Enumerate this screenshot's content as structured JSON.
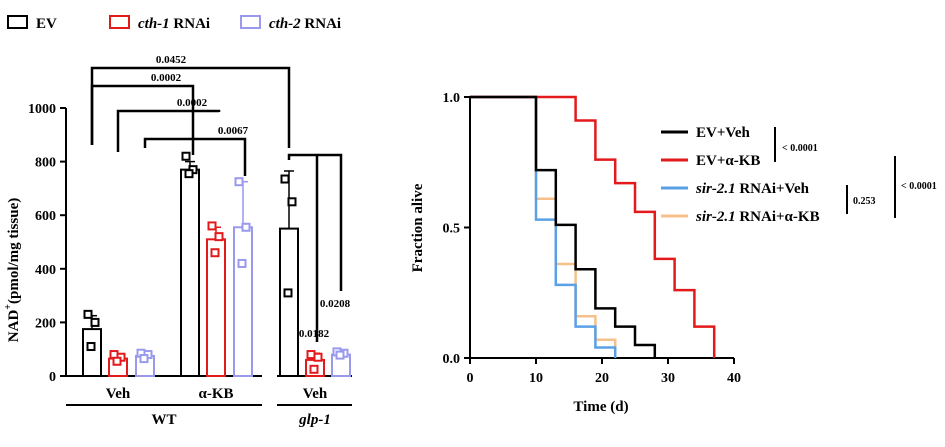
{
  "chart_data": [
    {
      "type": "bar",
      "legend": {
        "placement": "top-left",
        "entries": [
          {
            "plain": "EV",
            "ital": "",
            "rest": "",
            "color": "#000000"
          },
          {
            "plain": "",
            "ital": "cth-1",
            "rest": " RNAi",
            "color": "#e31a1c"
          },
          {
            "plain": "",
            "ital": "cth-2",
            "rest": " RNAi",
            "color": "#9999ee"
          }
        ]
      },
      "ylabel": {
        "main": "NAD",
        "sup": "+",
        "rest": "(pmol/mg tissue)"
      },
      "ylim": [
        0,
        1000
      ],
      "yticks": [
        0,
        200,
        400,
        600,
        800,
        1000
      ],
      "group_labels": [
        "Veh",
        "α-KB",
        "Veh"
      ],
      "super_labels": [
        {
          "text": "WT",
          "italic": false
        },
        {
          "text": "glp-1",
          "italic": true
        }
      ],
      "series_colors": [
        "#000000",
        "#e31a1c",
        "#9999ee"
      ],
      "bars": [
        {
          "series": 0,
          "group": 0,
          "value": 175,
          "err": 50,
          "points": [
            230,
            200,
            110
          ]
        },
        {
          "series": 1,
          "group": 0,
          "value": 65,
          "err": 15,
          "points": [
            80,
            70,
            55
          ]
        },
        {
          "series": 2,
          "group": 0,
          "value": 75,
          "err": 12,
          "points": [
            85,
            80,
            65
          ]
        },
        {
          "series": 0,
          "group": 1,
          "value": 770,
          "err": 30,
          "points": [
            820,
            770,
            755
          ]
        },
        {
          "series": 1,
          "group": 1,
          "value": 510,
          "err": 45,
          "points": [
            560,
            520,
            460
          ]
        },
        {
          "series": 2,
          "group": 1,
          "value": 555,
          "err": 170,
          "points": [
            725,
            555,
            420
          ]
        },
        {
          "series": 0,
          "group": 2,
          "value": 550,
          "err": 215,
          "points": [
            735,
            650,
            310
          ]
        },
        {
          "series": 1,
          "group": 2,
          "value": 60,
          "err": 25,
          "points": [
            80,
            70,
            25
          ]
        },
        {
          "series": 2,
          "group": 2,
          "value": 80,
          "err": 10,
          "points": [
            90,
            85,
            78
          ]
        }
      ],
      "comparisons": [
        "0.0452",
        "0.0002",
        "0.0002",
        "0.0067",
        "0.0182",
        "0.0208"
      ]
    },
    {
      "type": "line",
      "step": true,
      "xlabel": "Time (d)",
      "ylabel": "Fraction alive",
      "xlim": [
        0,
        40
      ],
      "ylim": [
        0,
        1
      ],
      "xticks": [
        0,
        10,
        20,
        30,
        40
      ],
      "yticks": [
        "0.0",
        "0.5",
        "1.0"
      ],
      "series": [
        {
          "name_italic": "",
          "name": "EV+Veh",
          "color": "#000000",
          "x": [
            0,
            10,
            13,
            16,
            19,
            22,
            25,
            28
          ],
          "y": [
            1.0,
            0.72,
            0.51,
            0.34,
            0.19,
            0.12,
            0.05,
            0.0
          ]
        },
        {
          "name_italic": "",
          "name": "EV+α-KB",
          "color": "#e31a1c",
          "x": [
            0,
            16,
            19,
            22,
            25,
            28,
            31,
            34,
            37
          ],
          "y": [
            1.0,
            0.91,
            0.76,
            0.67,
            0.56,
            0.38,
            0.26,
            0.12,
            0.0
          ]
        },
        {
          "name_italic": "sir-2.1",
          "name": " RNAi+Veh",
          "color": "#5aa0e6",
          "x": [
            0,
            10,
            13,
            16,
            19,
            22
          ],
          "y": [
            1.0,
            0.53,
            0.28,
            0.12,
            0.04,
            0.0
          ]
        },
        {
          "name_italic": "sir-2.1",
          "name": " RNAi+α-KB",
          "color": "#f5c08a",
          "x": [
            0,
            10,
            13,
            16,
            19,
            22
          ],
          "y": [
            1.0,
            0.61,
            0.36,
            0.16,
            0.07,
            0.0
          ]
        }
      ],
      "pvalues": [
        "< 0.0001",
        "0.253",
        "< 0.0001"
      ]
    }
  ]
}
